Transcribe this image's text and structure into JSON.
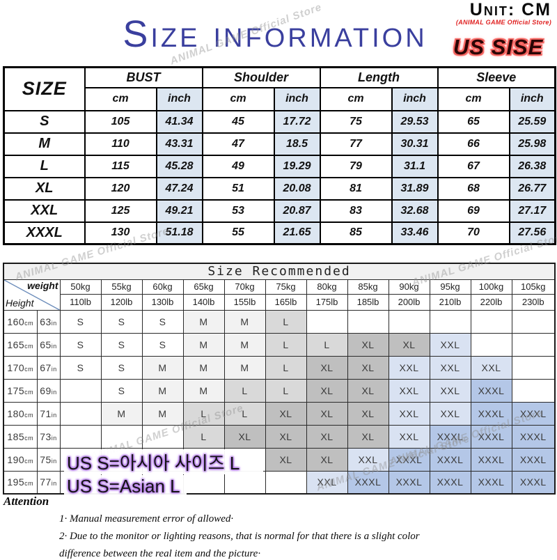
{
  "header": {
    "unit_label": "Unit: CM",
    "store_label": "(ANIMAL GAME Official Store)",
    "title": "Size information",
    "us_size_label": "US SISE"
  },
  "watermark": {
    "text": "ANIMAL GAME Official Store"
  },
  "size_table": {
    "corner_label": "SIZE",
    "groups": [
      "BUST",
      "Shoulder",
      "Length",
      "Sleeve"
    ],
    "unit_headers": [
      "cm",
      "inch"
    ],
    "rows": [
      {
        "size": "S",
        "values": [
          "105",
          "41.34",
          "45",
          "17.72",
          "75",
          "29.53",
          "65",
          "25.59"
        ]
      },
      {
        "size": "M",
        "values": [
          "110",
          "43.31",
          "47",
          "18.5",
          "77",
          "30.31",
          "66",
          "25.98"
        ]
      },
      {
        "size": "L",
        "values": [
          "115",
          "45.28",
          "49",
          "19.29",
          "79",
          "31.1",
          "67",
          "26.38"
        ]
      },
      {
        "size": "XL",
        "values": [
          "120",
          "47.24",
          "51",
          "20.08",
          "81",
          "31.89",
          "68",
          "26.77"
        ]
      },
      {
        "size": "XXL",
        "values": [
          "125",
          "49.21",
          "53",
          "20.87",
          "83",
          "32.68",
          "69",
          "27.17"
        ]
      },
      {
        "size": "XXXL",
        "values": [
          "130",
          "51.18",
          "55",
          "21.65",
          "85",
          "33.46",
          "70",
          "27.56"
        ]
      }
    ]
  },
  "recommend_table": {
    "title": "Size Recommended",
    "corner": {
      "weight_label": "weight",
      "height_label": "Height"
    },
    "weights_kg": [
      "50kg",
      "55kg",
      "60kg",
      "65kg",
      "70kg",
      "75kg",
      "80kg",
      "85kg",
      "90kg",
      "95kg",
      "100kg",
      "105kg"
    ],
    "weights_lb": [
      "110lb",
      "120lb",
      "130lb",
      "140lb",
      "155lb",
      "165lb",
      "175lb",
      "185lb",
      "200lb",
      "210lb",
      "220lb",
      "230lb"
    ],
    "rows": [
      {
        "height_cm": "160cm",
        "height_in": "63in",
        "cells": [
          "S",
          "S",
          "S",
          "M",
          "M",
          "L",
          "",
          "",
          "",
          "",
          "",
          ""
        ]
      },
      {
        "height_cm": "165cm",
        "height_in": "65in",
        "cells": [
          "S",
          "S",
          "S",
          "M",
          "M",
          "L",
          "L",
          "XL",
          "XL",
          "XXL",
          "",
          ""
        ]
      },
      {
        "height_cm": "170cm",
        "height_in": "67in",
        "cells": [
          "S",
          "S",
          "M",
          "M",
          "M",
          "L",
          "XL",
          "XL",
          "XXL",
          "XXL",
          "XXL",
          ""
        ]
      },
      {
        "height_cm": "175cm",
        "height_in": "69in",
        "cells": [
          "",
          "S",
          "M",
          "M",
          "L",
          "L",
          "XL",
          "XL",
          "XXL",
          "XXL",
          "XXXL",
          ""
        ]
      },
      {
        "height_cm": "180cm",
        "height_in": "71in",
        "cells": [
          "",
          "M",
          "M",
          "L",
          "L",
          "XL",
          "XL",
          "XL",
          "XXL",
          "XXL",
          "XXXL",
          "XXXL"
        ]
      },
      {
        "height_cm": "185cm",
        "height_in": "73in",
        "cells": [
          "",
          "",
          "",
          "L",
          "XL",
          "XL",
          "XL",
          "XL",
          "XXL",
          "XXXL",
          "XXXL",
          "XXXL"
        ]
      },
      {
        "height_cm": "190cm",
        "height_in": "75in",
        "cells": [
          "",
          "",
          "",
          "",
          "",
          "XL",
          "XL",
          "XXL",
          "XXXL",
          "XXXL",
          "XXXL",
          "XXXL"
        ]
      },
      {
        "height_cm": "195cm",
        "height_in": "77in",
        "cells": [
          "",
          "",
          "",
          "",
          "",
          "",
          "XXL",
          "XXXL",
          "XXXL",
          "XXXL",
          "XXXL",
          "XXXL"
        ]
      }
    ],
    "cell_colors": {
      "S": "#ffffff",
      "M": "#f2f2f2",
      "L": "#d9d9d9",
      "XL": "#bfbfbf",
      "XXL": "#d9e2f2",
      "XXXL": "#b4c7e7"
    }
  },
  "overlay": {
    "line1": "US S=아시아 사이즈 L",
    "line2": "US S=Asian L"
  },
  "attention": {
    "title": "Attention",
    "note1": "1·  Manual measurement error of allowed·",
    "note2_line1": "2·  Due to the monitor or lighting reasons, that is normal for that there is a slight color",
    "note2_line2": "difference between the real item and the picture·"
  },
  "colors": {
    "title_blue": "#3a3f9e",
    "accent_red": "#e02222",
    "inch_column_bg": "#dce6f1"
  }
}
